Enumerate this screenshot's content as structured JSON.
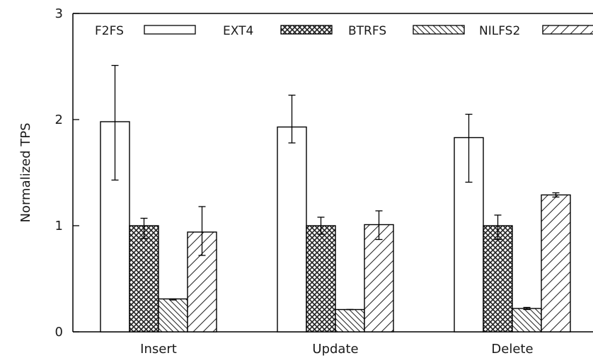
{
  "chart_data": {
    "type": "bar",
    "ylabel": "Normalized TPS",
    "xlabel": "",
    "ylim": [
      0,
      3
    ],
    "yticks": [
      0,
      1,
      2,
      3
    ],
    "grid": false,
    "legend_position": "top",
    "categories": [
      "Insert",
      "Update",
      "Delete"
    ],
    "series": [
      {
        "name": "F2FS",
        "pattern": "none",
        "values": [
          1.98,
          1.93,
          1.83
        ],
        "err_low": [
          1.43,
          1.78,
          1.41
        ],
        "err_high": [
          2.51,
          2.23,
          2.05
        ]
      },
      {
        "name": "EXT4",
        "pattern": "crosshatch",
        "values": [
          1.0,
          1.0,
          1.0
        ],
        "err_low": [
          0.88,
          0.92,
          0.87
        ],
        "err_high": [
          1.07,
          1.08,
          1.1
        ]
      },
      {
        "name": "BTRFS",
        "pattern": "backslash",
        "values": [
          0.31,
          0.21,
          0.22
        ],
        "err_low": [
          0.3,
          0.21,
          0.21
        ],
        "err_high": [
          0.31,
          0.21,
          0.23
        ]
      },
      {
        "name": "NILFS2",
        "pattern": "slash",
        "values": [
          0.94,
          1.01,
          1.29
        ],
        "err_low": [
          0.72,
          0.87,
          1.27
        ],
        "err_high": [
          1.18,
          1.14,
          1.31
        ]
      }
    ]
  }
}
